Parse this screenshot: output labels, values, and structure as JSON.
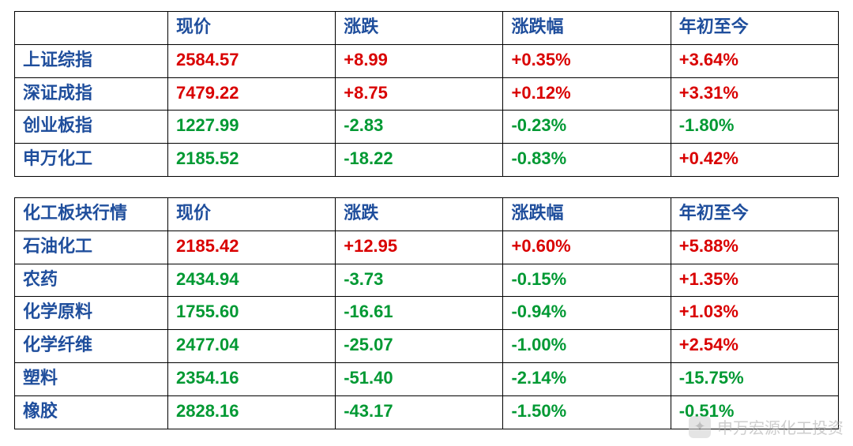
{
  "colors": {
    "header": "#1f4e9c",
    "row_label": "#1f4e9c",
    "positive": "#d90000",
    "negative": "#009933",
    "border": "#000000",
    "background": "#ffffff"
  },
  "font": {
    "family": "Microsoft YaHei",
    "size_pt": 22,
    "weight": "bold"
  },
  "col_widths_pct": [
    18.6,
    20.35,
    20.35,
    20.35,
    20.35
  ],
  "table1": {
    "headers": [
      "",
      "现价",
      "涨跌",
      "涨跌幅",
      "年初至今"
    ],
    "rows": [
      {
        "label": "上证综指",
        "cells": [
          {
            "text": "2584.57",
            "sign": "pos"
          },
          {
            "text": "+8.99",
            "sign": "pos"
          },
          {
            "text": "+0.35%",
            "sign": "pos"
          },
          {
            "text": "+3.64%",
            "sign": "pos"
          }
        ]
      },
      {
        "label": "深证成指",
        "cells": [
          {
            "text": "7479.22",
            "sign": "pos"
          },
          {
            "text": "+8.75",
            "sign": "pos"
          },
          {
            "text": "+0.12%",
            "sign": "pos"
          },
          {
            "text": "+3.31%",
            "sign": "pos"
          }
        ]
      },
      {
        "label": "创业板指",
        "cells": [
          {
            "text": "1227.99",
            "sign": "neg"
          },
          {
            "text": "-2.83",
            "sign": "neg"
          },
          {
            "text": "-0.23%",
            "sign": "neg"
          },
          {
            "text": "-1.80%",
            "sign": "neg"
          }
        ]
      },
      {
        "label": "申万化工",
        "cells": [
          {
            "text": "2185.52",
            "sign": "neg"
          },
          {
            "text": "-18.22",
            "sign": "neg"
          },
          {
            "text": "-0.83%",
            "sign": "neg"
          },
          {
            "text": "+0.42%",
            "sign": "pos"
          }
        ]
      }
    ]
  },
  "table2": {
    "headers": [
      "化工板块行情",
      "现价",
      "涨跌",
      "涨跌幅",
      "年初至今"
    ],
    "rows": [
      {
        "label": "石油化工",
        "cells": [
          {
            "text": "2185.42",
            "sign": "pos"
          },
          {
            "text": "+12.95",
            "sign": "pos"
          },
          {
            "text": "+0.60%",
            "sign": "pos"
          },
          {
            "text": "+5.88%",
            "sign": "pos"
          }
        ]
      },
      {
        "label": "农药",
        "cells": [
          {
            "text": "2434.94",
            "sign": "neg"
          },
          {
            "text": "-3.73",
            "sign": "neg"
          },
          {
            "text": "-0.15%",
            "sign": "neg"
          },
          {
            "text": "+1.35%",
            "sign": "pos"
          }
        ]
      },
      {
        "label": "化学原料",
        "cells": [
          {
            "text": "1755.60",
            "sign": "neg"
          },
          {
            "text": "-16.61",
            "sign": "neg"
          },
          {
            "text": "-0.94%",
            "sign": "neg"
          },
          {
            "text": "+1.03%",
            "sign": "pos"
          }
        ]
      },
      {
        "label": "化学纤维",
        "cells": [
          {
            "text": "2477.04",
            "sign": "neg"
          },
          {
            "text": "-25.07",
            "sign": "neg"
          },
          {
            "text": "-1.00%",
            "sign": "neg"
          },
          {
            "text": "+2.54%",
            "sign": "pos"
          }
        ]
      },
      {
        "label": "塑料",
        "cells": [
          {
            "text": "2354.16",
            "sign": "neg"
          },
          {
            "text": "-51.40",
            "sign": "neg"
          },
          {
            "text": "-2.14%",
            "sign": "neg"
          },
          {
            "text": "-15.75%",
            "sign": "neg"
          }
        ]
      },
      {
        "label": "橡胶",
        "cells": [
          {
            "text": "2828.16",
            "sign": "neg"
          },
          {
            "text": "-43.17",
            "sign": "neg"
          },
          {
            "text": "-1.50%",
            "sign": "neg"
          },
          {
            "text": "-0.51%",
            "sign": "neg"
          }
        ]
      }
    ]
  },
  "watermark": {
    "icon": "✦",
    "text": "申万宏源化工投资"
  }
}
